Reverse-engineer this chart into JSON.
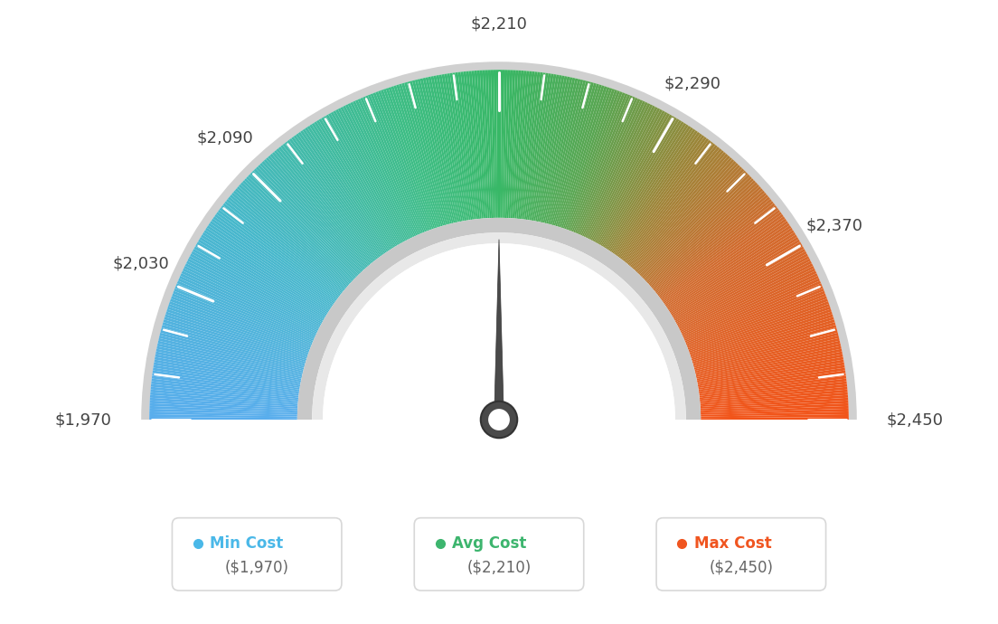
{
  "min_val": 1970,
  "max_val": 2450,
  "avg_val": 2210,
  "needle_value": 2210,
  "tick_values": [
    1970,
    2030,
    2090,
    2210,
    2290,
    2370,
    2450
  ],
  "tick_labels": [
    "$1,970",
    "$2,030",
    "$2,090",
    "$2,210",
    "$2,290",
    "$2,370",
    "$2,450"
  ],
  "legend": [
    {
      "label": "Min Cost",
      "value": "($1,970)",
      "color": "#4ab8e8"
    },
    {
      "label": "Avg Cost",
      "value": "($2,210)",
      "color": "#3db56e"
    },
    {
      "label": "Max Cost",
      "value": "($2,450)",
      "color": "#f05520"
    }
  ],
  "background_color": "#ffffff",
  "colors_gradient": [
    [
      0.0,
      [
        0.35,
        0.68,
        0.93
      ]
    ],
    [
      0.2,
      [
        0.28,
        0.72,
        0.8
      ]
    ],
    [
      0.4,
      [
        0.24,
        0.74,
        0.52
      ]
    ],
    [
      0.5,
      [
        0.22,
        0.72,
        0.4
      ]
    ],
    [
      0.6,
      [
        0.35,
        0.65,
        0.32
      ]
    ],
    [
      0.7,
      [
        0.62,
        0.52,
        0.22
      ]
    ],
    [
      0.8,
      [
        0.82,
        0.42,
        0.18
      ]
    ],
    [
      1.0,
      [
        0.95,
        0.33,
        0.1
      ]
    ]
  ]
}
